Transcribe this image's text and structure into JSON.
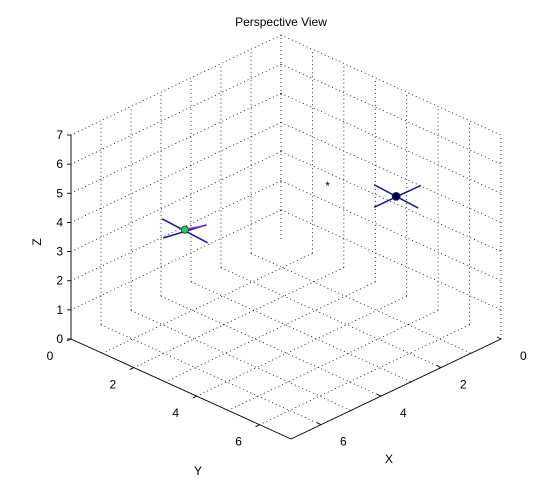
{
  "chart_data": {
    "type": "scatter",
    "projection": "3d-perspective",
    "title": "Perspective View",
    "xlabel": "X",
    "ylabel": "Y",
    "zlabel": "Z",
    "xlim": [
      0,
      7
    ],
    "ylim": [
      0,
      7
    ],
    "zlim": [
      0,
      7
    ],
    "x_ticks": [
      "0",
      "2",
      "4",
      "6"
    ],
    "y_ticks": [
      "0",
      "2",
      "4",
      "6"
    ],
    "z_ticks": [
      "0",
      "1",
      "2",
      "3",
      "4",
      "5",
      "6",
      "7"
    ],
    "grid": true,
    "objects": [
      {
        "name": "green-marker-object",
        "position": {
          "x": 2.0,
          "y": 5.3,
          "z": 3.9
        },
        "marker_color": "#2ecc40",
        "arm_color": "#1a237e",
        "accent_color": "#8b2be2"
      },
      {
        "name": "dark-marker-object",
        "position": {
          "x": 5.0,
          "y": 1.4,
          "z": 4.6
        },
        "marker_color": "#000033",
        "arm_color": "#1a237e"
      },
      {
        "name": "star-marker",
        "position": {
          "x": 3.2,
          "y": 1.8,
          "z": 4.3
        },
        "marker": "*",
        "marker_color": "#000000"
      }
    ]
  }
}
